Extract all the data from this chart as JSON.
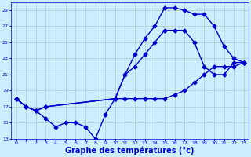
{
  "background_color": "#cceeff",
  "grid_color": "#aacccc",
  "line_color": "#0000cc",
  "line_width": 1.0,
  "marker": "D",
  "marker_size": 2.5,
  "xlabel": "Graphe des températures (°c)",
  "xlabel_fontsize": 7,
  "ylim": [
    13,
    30
  ],
  "xlim": [
    -0.5,
    23.5
  ],
  "yticks": [
    13,
    15,
    17,
    19,
    21,
    23,
    25,
    27,
    29
  ],
  "xticks": [
    0,
    1,
    2,
    3,
    4,
    5,
    6,
    7,
    8,
    9,
    10,
    11,
    12,
    13,
    14,
    15,
    16,
    17,
    18,
    19,
    20,
    21,
    22,
    23
  ],
  "tick_fontsize": 4.5,
  "series": [
    {
      "x": [
        0,
        1,
        2,
        3,
        10,
        11,
        12,
        13,
        14,
        15,
        16,
        17,
        18,
        19,
        20,
        21,
        22,
        23
      ],
      "y": [
        18,
        17,
        16.5,
        17,
        18,
        21,
        23.5,
        25.5,
        27,
        29.3,
        29.3,
        29,
        28.5,
        28.5,
        27,
        24.5,
        23,
        22.5
      ]
    },
    {
      "x": [
        0,
        1,
        2,
        3,
        10,
        11,
        12,
        13,
        14,
        15,
        16,
        17,
        18,
        19,
        20,
        21,
        22,
        23
      ],
      "y": [
        18,
        17,
        16.5,
        17,
        18,
        21,
        22,
        23.5,
        25,
        26.5,
        26.5,
        26.5,
        25,
        22,
        21,
        21,
        22.5,
        22.5
      ]
    },
    {
      "x": [
        0,
        1,
        2,
        3,
        4,
        5,
        6,
        7,
        8,
        9,
        10,
        11,
        12,
        13,
        14,
        15,
        16,
        17,
        18,
        19,
        20,
        21,
        22,
        23
      ],
      "y": [
        18,
        17,
        16.5,
        15.5,
        14.5,
        15,
        15,
        14.5,
        13,
        16,
        18,
        18,
        18,
        18,
        18,
        18,
        18.5,
        19,
        20,
        21,
        22,
        22,
        22,
        22.5
      ]
    }
  ]
}
